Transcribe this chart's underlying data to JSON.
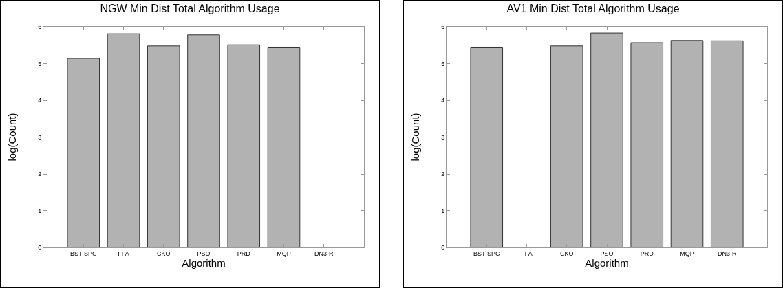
{
  "chart_data": [
    {
      "type": "bar",
      "title": "NGW Min Dist Total Algorithm Usage",
      "xlabel": "Algorithm",
      "ylabel": "log(Count)",
      "categories": [
        "BST-SPC",
        "FFA",
        "CKO",
        "PSO",
        "PRD",
        "MQP",
        "DN3-R"
      ],
      "values": [
        5.14,
        5.81,
        5.48,
        5.78,
        5.51,
        5.43,
        null
      ],
      "color": "#b2b2b2",
      "ylim": [
        0,
        6
      ],
      "yticks": [
        0,
        1,
        2,
        3,
        4,
        5,
        6
      ],
      "grid": false
    },
    {
      "type": "bar",
      "title": "AV1 Min Dist Total Algorithm Usage",
      "xlabel": "Algorithm",
      "ylabel": "log(Count)",
      "categories": [
        "BST-SPC",
        "FFA",
        "CKO",
        "PSO",
        "PRD",
        "MQP",
        "DN3-R"
      ],
      "values": [
        5.43,
        null,
        5.48,
        5.83,
        5.57,
        5.63,
        5.62
      ],
      "color": "#b2b2b2",
      "ylim": [
        0,
        6
      ],
      "yticks": [
        0,
        1,
        2,
        3,
        4,
        5,
        6
      ],
      "grid": false
    }
  ]
}
